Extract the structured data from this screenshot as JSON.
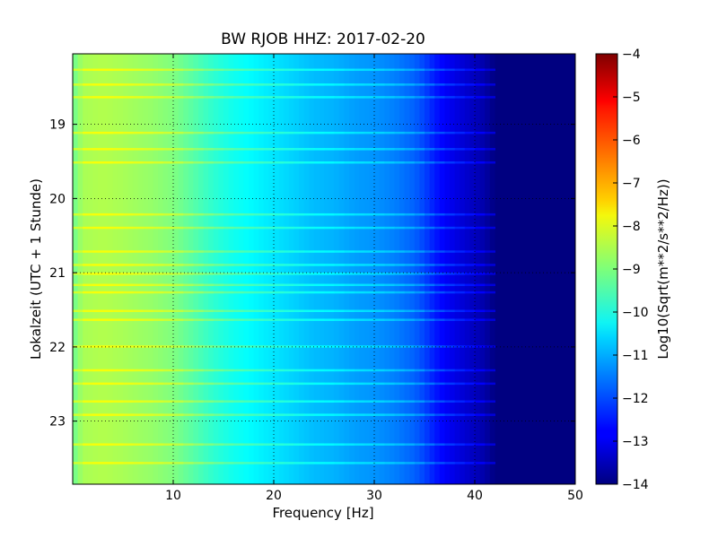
{
  "chart_data": {
    "type": "heatmap",
    "title": "BW RJOB HHZ: 2017-02-20",
    "xlabel": "Frequency [Hz]",
    "ylabel": "Lokalzeit (UTC + 1 Stunde)",
    "x_unit": "Hz",
    "xlim": [
      0,
      50
    ],
    "ylim": [
      18.05,
      23.85
    ],
    "y_inverted": true,
    "x_ticks": [
      10,
      20,
      30,
      40,
      50
    ],
    "x_tick_labels": [
      "10",
      "20",
      "30",
      "40",
      "50"
    ],
    "y_ticks": [
      19,
      20,
      21,
      22,
      23
    ],
    "y_tick_labels": [
      "19",
      "20",
      "21",
      "22",
      "23"
    ],
    "grid": true,
    "colormap": "jet",
    "colorbar": {
      "label": "Log10(Sqrt(m**2/s**2/Hz))",
      "range": [
        -14,
        -4
      ],
      "ticks": [
        -4,
        -5,
        -6,
        -7,
        -8,
        -9,
        -10,
        -11,
        -12,
        -13,
        -14
      ],
      "tick_labels": [
        "−4",
        "−5",
        "−6",
        "−7",
        "−8",
        "−9",
        "−10",
        "−11",
        "−12",
        "−13",
        "−14"
      ]
    },
    "frequency_profile": {
      "frequency": [
        0,
        1,
        3,
        5,
        8,
        10,
        12,
        14,
        16,
        18,
        20,
        22,
        24,
        26,
        28,
        30,
        32,
        34,
        35,
        36,
        37,
        38,
        39,
        40,
        41,
        41.5,
        42,
        44,
        50
      ],
      "value": [
        -9.2,
        -8.6,
        -8.5,
        -8.6,
        -8.8,
        -9.0,
        -9.4,
        -9.8,
        -10.1,
        -10.3,
        -10.5,
        -10.7,
        -10.9,
        -11.0,
        -11.2,
        -11.3,
        -11.5,
        -11.8,
        -12.1,
        -12.5,
        -12.8,
        -13.0,
        -13.2,
        -13.4,
        -13.6,
        -13.8,
        -14.0,
        -14.0,
        -14.0
      ]
    },
    "bright_bands_hours": [
      18.25,
      18.45,
      18.62,
      19.1,
      19.32,
      19.5,
      20.2,
      20.38,
      20.7,
      20.88,
      21.0,
      21.15,
      21.25,
      21.5,
      21.62,
      21.98,
      22.3,
      22.48,
      22.72,
      22.9,
      23.3,
      23.55
    ]
  }
}
